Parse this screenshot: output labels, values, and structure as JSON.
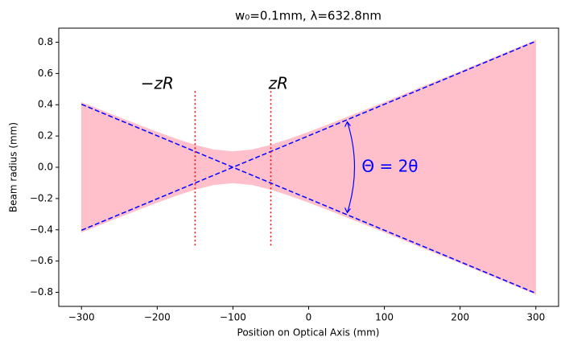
{
  "chart_data": {
    "type": "beam",
    "title": "w₀=0.1mm, λ=632.8nm",
    "xlabel": "Position on Optical Axis (mm)",
    "ylabel": "Beam radius (mm)",
    "xlim": [
      -330,
      330
    ],
    "ylim": [
      -0.89,
      0.89
    ],
    "xticks": [
      {
        "value": -300,
        "label": "−300"
      },
      {
        "value": -200,
        "label": "−200"
      },
      {
        "value": -100,
        "label": "−100"
      },
      0,
      100,
      200,
      300
    ],
    "yticks": [
      {
        "value": -0.8,
        "label": "−0.8"
      },
      {
        "value": -0.6,
        "label": "−0.6"
      },
      {
        "value": -0.4,
        "label": "−0.4"
      },
      {
        "value": -0.2,
        "label": "−0.2"
      },
      {
        "value": 0,
        "label": "0.0"
      },
      0.2,
      0.4,
      0.6,
      0.8
    ],
    "grid": false,
    "band": {
      "color": "pink",
      "x": [
        -300,
        -275,
        -250,
        -225,
        -200,
        -175,
        -150,
        -125,
        -100,
        -75,
        -50,
        -25,
        0,
        25,
        50,
        75,
        100,
        125,
        150,
        175,
        200,
        225,
        250,
        275,
        300
      ],
      "upper": [
        0.415,
        0.367,
        0.319,
        0.271,
        0.225,
        0.181,
        0.142,
        0.112,
        0.1,
        0.112,
        0.142,
        0.181,
        0.225,
        0.271,
        0.319,
        0.367,
        0.415,
        0.465,
        0.514,
        0.563,
        0.613,
        0.663,
        0.713,
        0.763,
        0.813
      ],
      "lower": [
        -0.415,
        -0.367,
        -0.319,
        -0.271,
        -0.225,
        -0.181,
        -0.142,
        -0.112,
        -0.1,
        -0.112,
        -0.142,
        -0.181,
        -0.225,
        -0.271,
        -0.319,
        -0.367,
        -0.415,
        -0.465,
        -0.514,
        -0.563,
        -0.613,
        -0.663,
        -0.713,
        -0.763,
        -0.813
      ]
    },
    "lines": [
      {
        "color": "blue",
        "x": [
          -300,
          300
        ],
        "values": [
          -0.403,
          0.806
        ]
      },
      {
        "color": "blue",
        "x": [
          -300,
          300
        ],
        "values": [
          0.403,
          -0.806
        ]
      }
    ],
    "vlines": [
      {
        "color": "red",
        "x": -150,
        "ymin": -0.5,
        "ymax": 0.5
      },
      {
        "color": "red",
        "x": -50,
        "ymin": -0.5,
        "ymax": 0.5
      }
    ],
    "annotations": [
      {
        "text": "−zR",
        "color": "black"
      },
      {
        "text": "zR",
        "color": "black"
      },
      {
        "text": "Θ = 2θ",
        "color": "blue"
      }
    ]
  }
}
